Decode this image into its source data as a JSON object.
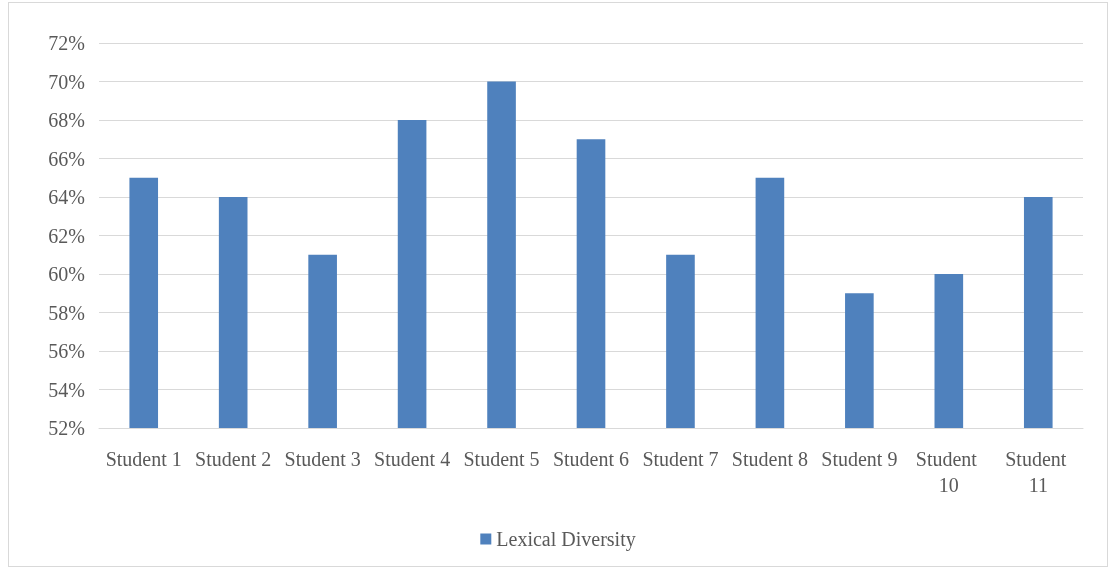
{
  "chart_data": {
    "type": "bar",
    "categories": [
      "Student 1",
      "Student 2",
      "Student 3",
      "Student 4",
      "Student 5",
      "Student 6",
      "Student 7",
      "Student 8",
      "Student 9",
      "Student 10",
      "Student 11"
    ],
    "series": [
      {
        "name": "Lexical Diversity",
        "color": "#4f81bd",
        "values": [
          65,
          64,
          61,
          68,
          70,
          67,
          61,
          65,
          59,
          60,
          64
        ]
      }
    ],
    "ylim": [
      52,
      72
    ],
    "yticks": [
      {
        "value": 52,
        "label": "52%"
      },
      {
        "value": 54,
        "label": "54%"
      },
      {
        "value": 56,
        "label": "56%"
      },
      {
        "value": 58,
        "label": "58%"
      },
      {
        "value": 60,
        "label": "60%"
      },
      {
        "value": 62,
        "label": "62%"
      },
      {
        "value": 64,
        "label": "64%"
      },
      {
        "value": 66,
        "label": "66%"
      },
      {
        "value": 68,
        "label": "68%"
      },
      {
        "value": 70,
        "label": "70%"
      },
      {
        "value": 72,
        "label": "72%"
      }
    ],
    "grid": "y",
    "legend": "bottom"
  }
}
